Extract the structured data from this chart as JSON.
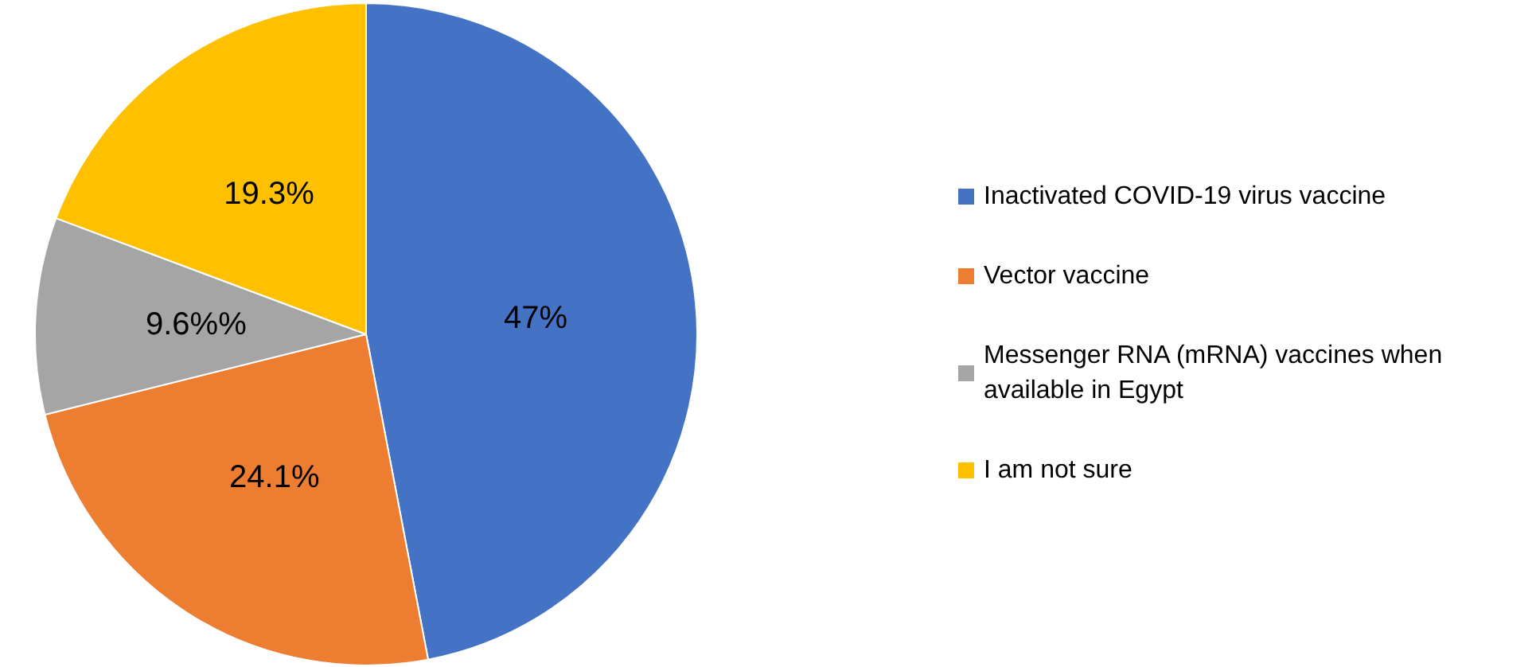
{
  "chart_data": {
    "type": "pie",
    "categories": [
      "Inactivated COVID-19 virus vaccine",
      "Vector vaccine",
      "Messenger RNA (mRNA) vaccines when available in Egypt",
      "I am not sure"
    ],
    "values": [
      47,
      24.1,
      9.6,
      19.3
    ],
    "value_labels": [
      "47%",
      "24.1%",
      "9.6%%",
      "19.3%"
    ],
    "colors": [
      "#4472c4",
      "#ed7d31",
      "#a5a5a5",
      "#ffc000"
    ],
    "legend": "right"
  }
}
